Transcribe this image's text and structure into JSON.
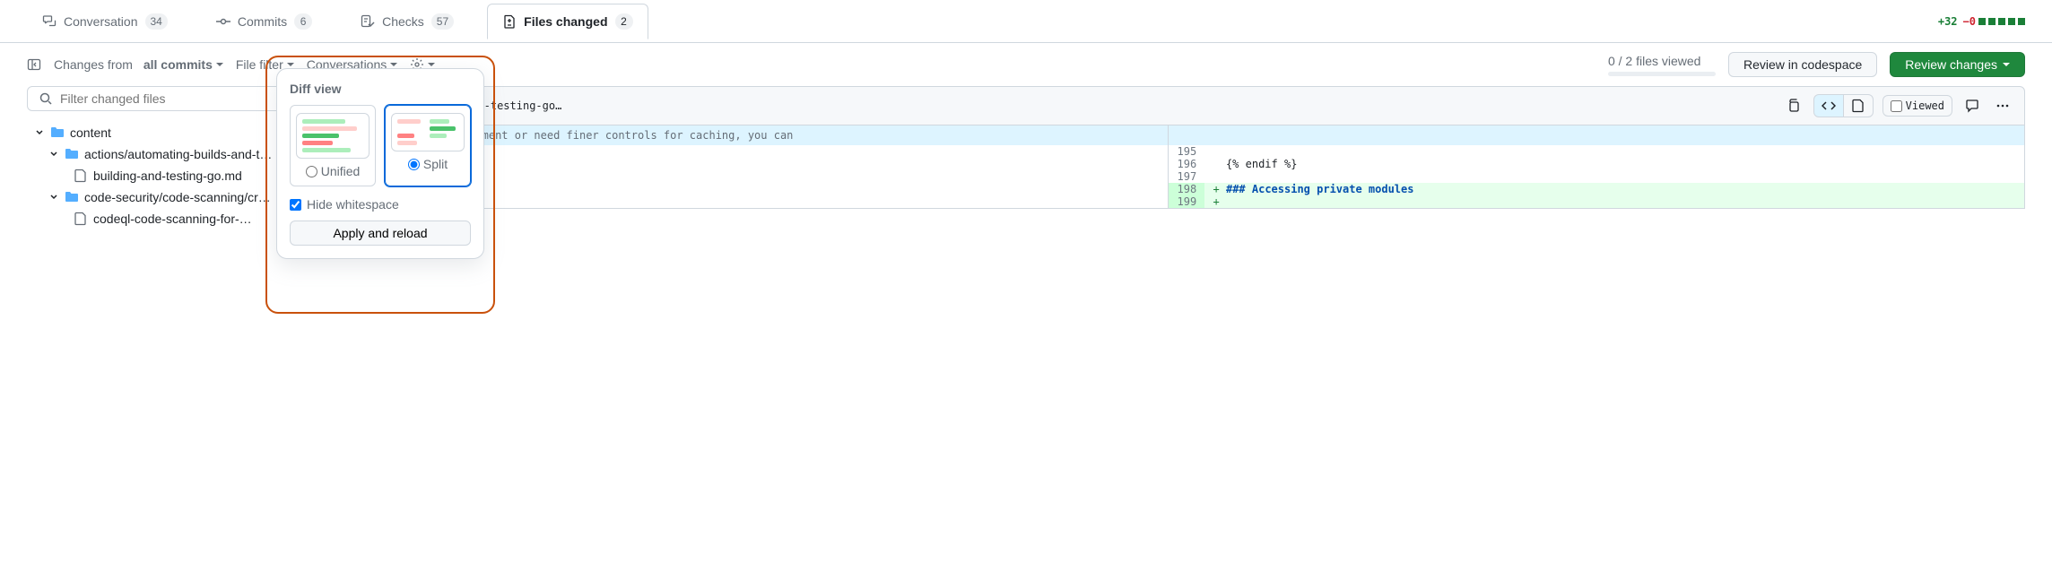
{
  "tabs": {
    "conversation": {
      "label": "Conversation",
      "count": "34"
    },
    "commits": {
      "label": "Commits",
      "count": "6"
    },
    "checks": {
      "label": "Checks",
      "count": "57"
    },
    "files": {
      "label": "Files changed",
      "count": "2"
    }
  },
  "diffstat": {
    "additions": "+32",
    "deletions": "−0"
  },
  "toolbar": {
    "changes_from": "Changes from",
    "all_commits": "all commits",
    "file_filter": "File filter",
    "conversations": "Conversations",
    "files_viewed": "0 / 2 files viewed",
    "review_codespace": "Review in codespace",
    "review_changes": "Review changes"
  },
  "filter_placeholder": "Filter changed files",
  "tree": {
    "root": "content",
    "folder1": "actions/automating-builds-and-t…",
    "file1": "building-and-testing-go.md",
    "folder2": "code-security/code-scanning/cr…",
    "file2": "codeql-code-scanning-for-…"
  },
  "popover": {
    "title": "Diff view",
    "unified": "Unified",
    "split": "Split",
    "hide_ws": "Hide whitespace",
    "apply": "Apply and reload",
    "colors": {
      "add": "#aceebb",
      "del": "#ffcecb",
      "addD": "#4ac26b",
      "delD": "#ff8182"
    }
  },
  "file": {
    "path": "ds-and-tests/building-and-testing-go…",
    "viewed_label": "Viewed",
    "hunk": "you have a custom requirement or need finer controls for caching, you can",
    "lines": [
      {
        "num": "195",
        "sign": " ",
        "text": ""
      },
      {
        "num": "196",
        "sign": " ",
        "text": "{% endif %}"
      },
      {
        "num": "197",
        "sign": " ",
        "text": ""
      },
      {
        "num": "198",
        "sign": "+",
        "text": "### Accessing private modules",
        "add": true,
        "heading": true
      },
      {
        "num": "199",
        "sign": "+",
        "text": "",
        "add": true
      }
    ]
  }
}
